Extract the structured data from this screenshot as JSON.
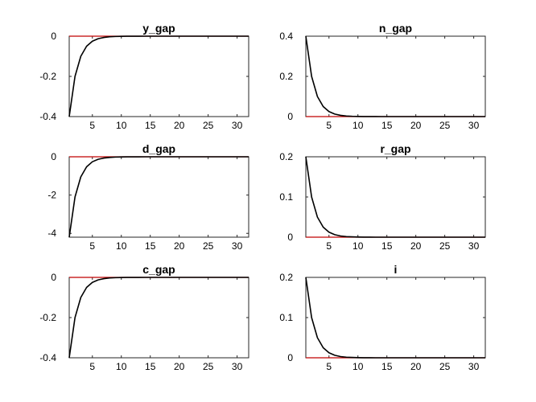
{
  "chart_data": [
    {
      "type": "line",
      "title": "y_gap",
      "xlim": [
        1,
        32
      ],
      "ylim": [
        -0.4,
        0
      ],
      "xticks": [
        "5",
        "10",
        "15",
        "20",
        "25",
        "30"
      ],
      "xtick_values": [
        5,
        10,
        15,
        20,
        25,
        30
      ],
      "yticks": [
        "0",
        "-0.2",
        "-0.4"
      ],
      "ytick_values": [
        0,
        -0.2,
        -0.4
      ],
      "steady_state": 0,
      "series": [
        {
          "x": [
            1,
            2,
            3,
            4,
            5,
            6,
            7,
            8,
            9,
            10,
            11,
            12,
            13,
            14,
            15,
            16,
            17,
            18,
            19,
            20,
            21,
            22,
            23,
            24,
            25,
            26,
            27,
            28,
            29,
            30,
            31,
            32
          ],
          "values": [
            -0.4,
            -0.2,
            -0.1,
            -0.05,
            -0.025,
            -0.0125,
            -0.00625,
            -0.003,
            -0.0015,
            -0.0008,
            -0.0004,
            -0.0002,
            -0.0001,
            0,
            0,
            0,
            0,
            0,
            0,
            0,
            0,
            0,
            0,
            0,
            0,
            0,
            0,
            0,
            0,
            0,
            0,
            0
          ]
        }
      ]
    },
    {
      "type": "line",
      "title": "n_gap",
      "xlim": [
        1,
        32
      ],
      "ylim": [
        0,
        0.4
      ],
      "xticks": [
        "5",
        "10",
        "15",
        "20",
        "25",
        "30"
      ],
      "xtick_values": [
        5,
        10,
        15,
        20,
        25,
        30
      ],
      "yticks": [
        "0.4",
        "0.2",
        "0"
      ],
      "ytick_values": [
        0.4,
        0.2,
        0
      ],
      "steady_state": 0,
      "series": [
        {
          "x": [
            1,
            2,
            3,
            4,
            5,
            6,
            7,
            8,
            9,
            10,
            11,
            12,
            13,
            14,
            15,
            16,
            17,
            18,
            19,
            20,
            21,
            22,
            23,
            24,
            25,
            26,
            27,
            28,
            29,
            30,
            31,
            32
          ],
          "values": [
            0.4,
            0.2,
            0.1,
            0.05,
            0.025,
            0.0125,
            0.00625,
            0.003,
            0.0015,
            0.0008,
            0.0004,
            0.0002,
            0.0001,
            0,
            0,
            0,
            0,
            0,
            0,
            0,
            0,
            0,
            0,
            0,
            0,
            0,
            0,
            0,
            0,
            0,
            0,
            0
          ]
        }
      ]
    },
    {
      "type": "line",
      "title": "d_gap",
      "xlim": [
        1,
        32
      ],
      "ylim": [
        -4.2,
        0
      ],
      "xticks": [
        "5",
        "10",
        "15",
        "20",
        "25",
        "30"
      ],
      "xtick_values": [
        5,
        10,
        15,
        20,
        25,
        30
      ],
      "yticks": [
        "0",
        "-2",
        "-4"
      ],
      "ytick_values": [
        0,
        -2,
        -4
      ],
      "steady_state": 0,
      "series": [
        {
          "x": [
            1,
            2,
            3,
            4,
            5,
            6,
            7,
            8,
            9,
            10,
            11,
            12,
            13,
            14,
            15,
            16,
            17,
            18,
            19,
            20,
            21,
            22,
            23,
            24,
            25,
            26,
            27,
            28,
            29,
            30,
            31,
            32
          ],
          "values": [
            -4.2,
            -2.1,
            -1.05,
            -0.525,
            -0.26,
            -0.13,
            -0.066,
            -0.033,
            -0.016,
            -0.008,
            -0.004,
            -0.002,
            -0.001,
            0,
            0,
            0,
            0,
            0,
            0,
            0,
            0,
            0,
            0,
            0,
            0,
            0,
            0,
            0,
            0,
            0,
            0,
            0
          ]
        }
      ]
    },
    {
      "type": "line",
      "title": "r_gap",
      "xlim": [
        1,
        32
      ],
      "ylim": [
        0,
        0.2
      ],
      "xticks": [
        "5",
        "10",
        "15",
        "20",
        "25",
        "30"
      ],
      "xtick_values": [
        5,
        10,
        15,
        20,
        25,
        30
      ],
      "yticks": [
        "0.2",
        "0.1",
        "0"
      ],
      "ytick_values": [
        0.2,
        0.1,
        0
      ],
      "steady_state": 0,
      "series": [
        {
          "x": [
            1,
            2,
            3,
            4,
            5,
            6,
            7,
            8,
            9,
            10,
            11,
            12,
            13,
            14,
            15,
            16,
            17,
            18,
            19,
            20,
            21,
            22,
            23,
            24,
            25,
            26,
            27,
            28,
            29,
            30,
            31,
            32
          ],
          "values": [
            0.2,
            0.1,
            0.05,
            0.025,
            0.0125,
            0.00625,
            0.003,
            0.0015,
            0.0008,
            0.0004,
            0.0002,
            0.0001,
            0,
            0,
            0,
            0,
            0,
            0,
            0,
            0,
            0,
            0,
            0,
            0,
            0,
            0,
            0,
            0,
            0,
            0,
            0,
            0
          ]
        }
      ]
    },
    {
      "type": "line",
      "title": "c_gap",
      "xlim": [
        1,
        32
      ],
      "ylim": [
        -0.4,
        0
      ],
      "xticks": [
        "5",
        "10",
        "15",
        "20",
        "25",
        "30"
      ],
      "xtick_values": [
        5,
        10,
        15,
        20,
        25,
        30
      ],
      "yticks": [
        "0",
        "-0.2",
        "-0.4"
      ],
      "ytick_values": [
        0,
        -0.2,
        -0.4
      ],
      "steady_state": 0,
      "series": [
        {
          "x": [
            1,
            2,
            3,
            4,
            5,
            6,
            7,
            8,
            9,
            10,
            11,
            12,
            13,
            14,
            15,
            16,
            17,
            18,
            19,
            20,
            21,
            22,
            23,
            24,
            25,
            26,
            27,
            28,
            29,
            30,
            31,
            32
          ],
          "values": [
            -0.4,
            -0.2,
            -0.1,
            -0.05,
            -0.025,
            -0.0125,
            -0.00625,
            -0.003,
            -0.0015,
            -0.0008,
            -0.0004,
            -0.0002,
            -0.0001,
            0,
            0,
            0,
            0,
            0,
            0,
            0,
            0,
            0,
            0,
            0,
            0,
            0,
            0,
            0,
            0,
            0,
            0,
            0
          ]
        }
      ]
    },
    {
      "type": "line",
      "title": "i",
      "xlim": [
        1,
        32
      ],
      "ylim": [
        0,
        0.2
      ],
      "xticks": [
        "5",
        "10",
        "15",
        "20",
        "25",
        "30"
      ],
      "xtick_values": [
        5,
        10,
        15,
        20,
        25,
        30
      ],
      "yticks": [
        "0.2",
        "0.1",
        "0"
      ],
      "ytick_values": [
        0.2,
        0.1,
        0
      ],
      "steady_state": 0,
      "series": [
        {
          "x": [
            1,
            2,
            3,
            4,
            5,
            6,
            7,
            8,
            9,
            10,
            11,
            12,
            13,
            14,
            15,
            16,
            17,
            18,
            19,
            20,
            21,
            22,
            23,
            24,
            25,
            26,
            27,
            28,
            29,
            30,
            31,
            32
          ],
          "values": [
            0.2,
            0.1,
            0.05,
            0.025,
            0.0125,
            0.00625,
            0.003,
            0.0015,
            0.0008,
            0.0004,
            0.0002,
            0.0001,
            0,
            0,
            0,
            0,
            0,
            0,
            0,
            0,
            0,
            0,
            0,
            0,
            0,
            0,
            0,
            0,
            0,
            0,
            0,
            0
          ]
        }
      ]
    }
  ],
  "colors": {
    "response_line": "#000000",
    "steady_state_line": "#c00000",
    "axes": "#262626"
  }
}
